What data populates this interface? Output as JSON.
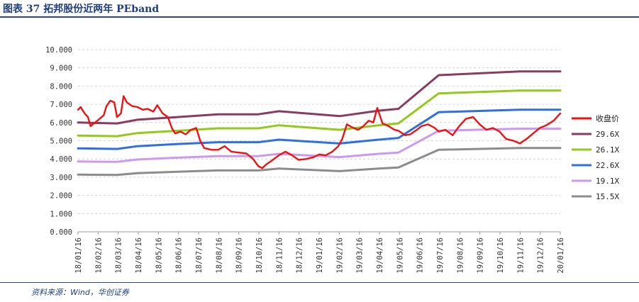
{
  "header": {
    "title": "图表 37 拓邦股份近两年 PEband"
  },
  "footer": {
    "source": "资料来源：Wind，华创证券"
  },
  "chart_data": {
    "type": "line",
    "title": "图表 37 拓邦股份近两年 PEband",
    "ylim": [
      0,
      10
    ],
    "yticks": [
      "0.000",
      "1.000",
      "2.000",
      "3.000",
      "4.000",
      "5.000",
      "6.000",
      "7.000",
      "8.000",
      "9.000",
      "10.000"
    ],
    "xlim": [
      "2018-01-16",
      "2020-01-16"
    ],
    "xticks": [
      "18/01/16",
      "18/02/16",
      "18/03/16",
      "18/04/16",
      "18/05/16",
      "18/06/16",
      "18/07/16",
      "18/08/16",
      "18/09/16",
      "18/10/16",
      "18/11/16",
      "18/12/16",
      "19/01/16",
      "19/02/16",
      "19/03/16",
      "19/04/16",
      "19/05/16",
      "19/06/16",
      "19/07/16",
      "19/08/16",
      "19/09/16",
      "19/10/16",
      "19/11/16",
      "19/12/16",
      "20/01/16"
    ],
    "grid": "horizontal-dashed",
    "legend_position": "right",
    "series": [
      {
        "name": "收盘价",
        "color": "#ee1111",
        "points": [
          [
            "2018-01-16",
            6.7
          ],
          [
            "2018-01-20",
            6.85
          ],
          [
            "2018-01-26",
            6.5
          ],
          [
            "2018-01-31",
            6.3
          ],
          [
            "2018-02-04",
            5.8
          ],
          [
            "2018-02-09",
            5.95
          ],
          [
            "2018-02-16",
            6.15
          ],
          [
            "2018-02-24",
            6.4
          ],
          [
            "2018-02-28",
            6.9
          ],
          [
            "2018-03-06",
            7.2
          ],
          [
            "2018-03-12",
            7.1
          ],
          [
            "2018-03-16",
            6.3
          ],
          [
            "2018-03-22",
            6.5
          ],
          [
            "2018-03-26",
            7.45
          ],
          [
            "2018-03-31",
            7.1
          ],
          [
            "2018-04-08",
            6.9
          ],
          [
            "2018-04-16",
            6.85
          ],
          [
            "2018-04-24",
            6.7
          ],
          [
            "2018-05-01",
            6.75
          ],
          [
            "2018-05-10",
            6.6
          ],
          [
            "2018-05-16",
            6.95
          ],
          [
            "2018-05-24",
            6.5
          ],
          [
            "2018-06-01",
            6.3
          ],
          [
            "2018-06-07",
            5.7
          ],
          [
            "2018-06-12",
            5.4
          ],
          [
            "2018-06-20",
            5.5
          ],
          [
            "2018-06-28",
            5.35
          ],
          [
            "2018-07-06",
            5.6
          ],
          [
            "2018-07-14",
            5.7
          ],
          [
            "2018-07-20",
            5.0
          ],
          [
            "2018-07-26",
            4.6
          ],
          [
            "2018-08-06",
            4.5
          ],
          [
            "2018-08-16",
            4.5
          ],
          [
            "2018-08-26",
            4.7
          ],
          [
            "2018-09-05",
            4.4
          ],
          [
            "2018-09-16",
            4.35
          ],
          [
            "2018-09-28",
            4.3
          ],
          [
            "2018-10-08",
            4.0
          ],
          [
            "2018-10-16",
            3.6
          ],
          [
            "2018-10-22",
            3.5
          ],
          [
            "2018-10-28",
            3.7
          ],
          [
            "2018-11-05",
            3.9
          ],
          [
            "2018-11-16",
            4.2
          ],
          [
            "2018-11-26",
            4.4
          ],
          [
            "2018-12-06",
            4.2
          ],
          [
            "2018-12-16",
            3.95
          ],
          [
            "2018-12-28",
            4.0
          ],
          [
            "2019-01-08",
            4.1
          ],
          [
            "2019-01-16",
            4.25
          ],
          [
            "2019-01-26",
            4.2
          ],
          [
            "2019-02-05",
            4.4
          ],
          [
            "2019-02-14",
            4.7
          ],
          [
            "2019-02-20",
            5.1
          ],
          [
            "2019-02-27",
            5.9
          ],
          [
            "2019-03-06",
            5.75
          ],
          [
            "2019-03-16",
            5.6
          ],
          [
            "2019-03-24",
            5.8
          ],
          [
            "2019-04-01",
            6.1
          ],
          [
            "2019-04-08",
            6.0
          ],
          [
            "2019-04-14",
            6.8
          ],
          [
            "2019-04-22",
            5.95
          ],
          [
            "2019-05-01",
            5.8
          ],
          [
            "2019-05-10",
            5.6
          ],
          [
            "2019-05-16",
            5.55
          ],
          [
            "2019-05-26",
            5.3
          ],
          [
            "2019-06-03",
            5.35
          ],
          [
            "2019-06-11",
            5.55
          ],
          [
            "2019-06-20",
            5.8
          ],
          [
            "2019-06-30",
            5.9
          ],
          [
            "2019-07-10",
            5.7
          ],
          [
            "2019-07-16",
            5.5
          ],
          [
            "2019-07-26",
            5.6
          ],
          [
            "2019-08-06",
            5.3
          ],
          [
            "2019-08-16",
            5.8
          ],
          [
            "2019-08-26",
            6.2
          ],
          [
            "2019-09-06",
            6.3
          ],
          [
            "2019-09-16",
            5.9
          ],
          [
            "2019-09-26",
            5.6
          ],
          [
            "2019-10-06",
            5.7
          ],
          [
            "2019-10-16",
            5.5
          ],
          [
            "2019-10-26",
            5.1
          ],
          [
            "2019-11-06",
            5.0
          ],
          [
            "2019-11-16",
            4.85
          ],
          [
            "2019-11-26",
            5.1
          ],
          [
            "2019-12-06",
            5.4
          ],
          [
            "2019-12-16",
            5.7
          ],
          [
            "2019-12-26",
            5.85
          ],
          [
            "2020-01-06",
            6.1
          ],
          [
            "2020-01-16",
            6.5
          ]
        ]
      },
      {
        "name": "29.6X",
        "color": "#8b3a62",
        "points": [
          [
            "2018-01-16",
            6.0
          ],
          [
            "2018-03-16",
            5.95
          ],
          [
            "2018-04-16",
            6.15
          ],
          [
            "2018-06-16",
            6.3
          ],
          [
            "2018-08-16",
            6.45
          ],
          [
            "2018-10-16",
            6.45
          ],
          [
            "2018-11-16",
            6.62
          ],
          [
            "2019-02-16",
            6.35
          ],
          [
            "2019-04-16",
            6.65
          ],
          [
            "2019-05-16",
            6.75
          ],
          [
            "2019-07-16",
            8.6
          ],
          [
            "2019-11-16",
            8.8
          ],
          [
            "2020-01-16",
            8.8
          ]
        ]
      },
      {
        "name": "26.1X",
        "color": "#92c91b",
        "points": [
          [
            "2018-01-16",
            5.28
          ],
          [
            "2018-03-16",
            5.25
          ],
          [
            "2018-04-16",
            5.42
          ],
          [
            "2018-06-16",
            5.55
          ],
          [
            "2018-08-16",
            5.68
          ],
          [
            "2018-10-16",
            5.68
          ],
          [
            "2018-11-16",
            5.85
          ],
          [
            "2019-02-16",
            5.6
          ],
          [
            "2019-04-16",
            5.85
          ],
          [
            "2019-05-16",
            5.95
          ],
          [
            "2019-07-16",
            7.6
          ],
          [
            "2019-11-16",
            7.75
          ],
          [
            "2020-01-16",
            7.75
          ]
        ]
      },
      {
        "name": "22.6X",
        "color": "#2f6fe0",
        "points": [
          [
            "2018-01-16",
            4.58
          ],
          [
            "2018-03-16",
            4.55
          ],
          [
            "2018-04-16",
            4.7
          ],
          [
            "2018-06-16",
            4.82
          ],
          [
            "2018-08-16",
            4.92
          ],
          [
            "2018-10-16",
            4.92
          ],
          [
            "2018-11-16",
            5.06
          ],
          [
            "2019-02-16",
            4.85
          ],
          [
            "2019-04-16",
            5.06
          ],
          [
            "2019-05-16",
            5.15
          ],
          [
            "2019-07-16",
            6.57
          ],
          [
            "2019-11-16",
            6.7
          ],
          [
            "2020-01-16",
            6.7
          ]
        ]
      },
      {
        "name": "19.1X",
        "color": "#cc99ee",
        "points": [
          [
            "2018-01-16",
            3.86
          ],
          [
            "2018-03-16",
            3.84
          ],
          [
            "2018-04-16",
            3.97
          ],
          [
            "2018-06-16",
            4.07
          ],
          [
            "2018-08-16",
            4.15
          ],
          [
            "2018-10-16",
            4.15
          ],
          [
            "2018-11-16",
            4.28
          ],
          [
            "2019-02-16",
            4.1
          ],
          [
            "2019-04-16",
            4.28
          ],
          [
            "2019-05-16",
            4.35
          ],
          [
            "2019-07-16",
            5.55
          ],
          [
            "2019-11-16",
            5.66
          ],
          [
            "2020-01-16",
            5.66
          ]
        ]
      },
      {
        "name": "15.5X",
        "color": "#8c8c8c",
        "points": [
          [
            "2018-01-16",
            3.14
          ],
          [
            "2018-03-16",
            3.12
          ],
          [
            "2018-04-16",
            3.22
          ],
          [
            "2018-06-16",
            3.3
          ],
          [
            "2018-08-16",
            3.37
          ],
          [
            "2018-10-16",
            3.37
          ],
          [
            "2018-11-16",
            3.47
          ],
          [
            "2019-02-16",
            3.33
          ],
          [
            "2019-04-16",
            3.47
          ],
          [
            "2019-05-16",
            3.53
          ],
          [
            "2019-07-16",
            4.5
          ],
          [
            "2019-11-16",
            4.6
          ],
          [
            "2020-01-16",
            4.6
          ]
        ]
      }
    ]
  }
}
